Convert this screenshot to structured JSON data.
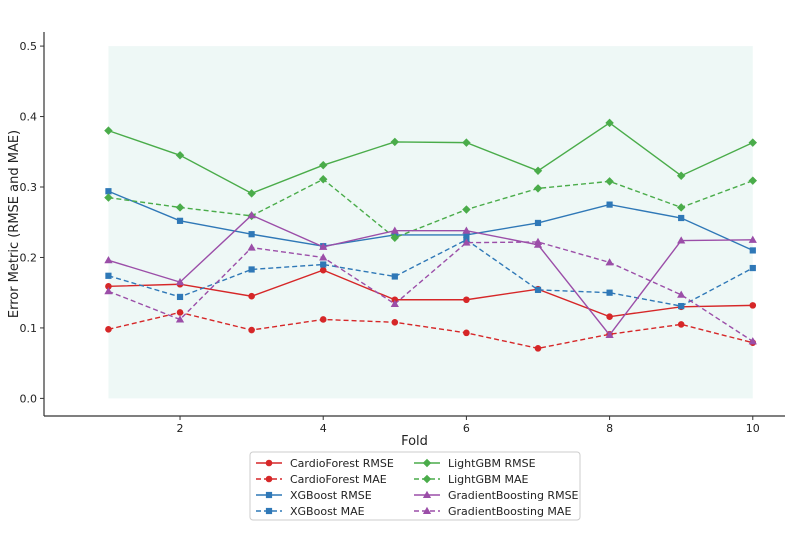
{
  "chart_data": {
    "type": "line",
    "title": "",
    "xlabel": "Fold",
    "ylabel": "Error Metric (RMSE and MAE)",
    "x": [
      1,
      2,
      3,
      4,
      5,
      6,
      7,
      8,
      9,
      10
    ],
    "xticks": [
      2,
      4,
      6,
      8,
      10
    ],
    "xlim": [
      0.1,
      10.45
    ],
    "yticks": [
      0.0,
      0.1,
      0.2,
      0.3,
      0.4,
      0.5
    ],
    "ytick_labels": [
      "0.0",
      "0.1",
      "0.2",
      "0.3",
      "0.4",
      "0.5"
    ],
    "ylim": [
      -0.025,
      0.52
    ],
    "shaded_region": {
      "x": [
        1,
        10
      ],
      "y": [
        0.0,
        0.5
      ],
      "color": "#e8f6f3"
    },
    "grid": false,
    "legend_position": "bottom-center, outside plot, 2 columns",
    "series": [
      {
        "name": "CardioForest RMSE",
        "color": "#d62728",
        "marker": "circle",
        "dash": "solid",
        "values": [
          0.159,
          0.162,
          0.145,
          0.182,
          0.14,
          0.14,
          0.155,
          0.116,
          0.13,
          0.132
        ]
      },
      {
        "name": "CardioForest MAE",
        "color": "#d62728",
        "marker": "circle",
        "dash": "dashed",
        "values": [
          0.098,
          0.122,
          0.097,
          0.112,
          0.108,
          0.093,
          0.071,
          0.091,
          0.105,
          0.079
        ]
      },
      {
        "name": "XGBoost RMSE",
        "color": "#2f78b7",
        "marker": "square",
        "dash": "solid",
        "values": [
          0.294,
          0.252,
          0.233,
          0.216,
          0.232,
          0.232,
          0.249,
          0.275,
          0.256,
          0.21
        ]
      },
      {
        "name": "XGBoost MAE",
        "color": "#2f78b7",
        "marker": "square",
        "dash": "dashed",
        "values": [
          0.174,
          0.144,
          0.183,
          0.19,
          0.173,
          0.225,
          0.154,
          0.15,
          0.131,
          0.185
        ]
      },
      {
        "name": "LightGBM RMSE",
        "color": "#4aac4a",
        "marker": "diamond",
        "dash": "solid",
        "values": [
          0.38,
          0.345,
          0.291,
          0.331,
          0.364,
          0.363,
          0.323,
          0.391,
          0.316,
          0.363
        ]
      },
      {
        "name": "LightGBM MAE",
        "color": "#4aac4a",
        "marker": "diamond",
        "dash": "dashed",
        "values": [
          0.285,
          0.271,
          0.259,
          0.311,
          0.228,
          0.268,
          0.298,
          0.308,
          0.271,
          0.309
        ]
      },
      {
        "name": "GradientBoosting RMSE",
        "color": "#9b4ea8",
        "marker": "triangle",
        "dash": "solid",
        "values": [
          0.196,
          0.165,
          0.26,
          0.215,
          0.238,
          0.238,
          0.218,
          0.09,
          0.224,
          0.225
        ]
      },
      {
        "name": "GradientBoosting MAE",
        "color": "#9b4ea8",
        "marker": "triangle",
        "dash": "dashed",
        "values": [
          0.152,
          0.112,
          0.214,
          0.2,
          0.134,
          0.221,
          0.222,
          0.193,
          0.147,
          0.081
        ]
      }
    ]
  }
}
